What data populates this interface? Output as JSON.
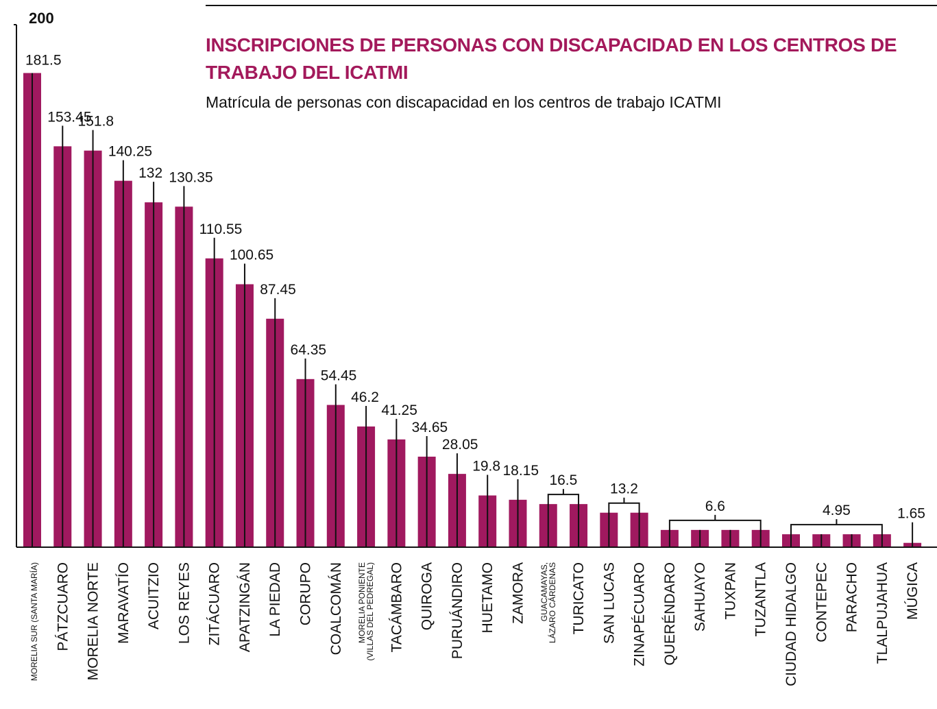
{
  "chart_data": {
    "type": "bar",
    "title": "INSCRIPCIONES DE PERSONAS CON DISCAPACIDAD EN LOS CENTROS DE TRABAJO DEL ICATMI",
    "subtitle": "Matrícula de personas con discapacidad en los centros de trabajo ICATMI",
    "categories": [
      "MORELIA SUR (SANTA MARÍA)",
      "PÁTZCUARO",
      "MORELIA NORTE",
      "MARAVATÍO",
      "ACUITZIO",
      "LOS REYES",
      "ZITÁCUARO",
      "APATZINGÁN",
      "LA PIEDAD",
      "CORUPO",
      "COALCOMÁN",
      "MORELIA PONIENTE\n(VILLAS DEL PEDREGAL)",
      "TACÁMBARO",
      "QUIROGA",
      "PURUÁNDIRO",
      "HUETAMO",
      "ZAMORA",
      "GUACAMAYAS,\nLÁZARO CÁRDENAS",
      "TURICATO",
      "SAN LUCAS",
      "ZINAPÉCUARO",
      "QUERÉNDARO",
      "SAHUAYO",
      "TUXPAN",
      "TUZANTLA",
      "CIUDAD HIDALGO",
      "CONTEPEC",
      "PARACHO",
      "TLALPUJAHUA",
      "MÚGICA"
    ],
    "values": [
      181.5,
      153.45,
      151.8,
      140.25,
      132,
      130.35,
      110.55,
      100.65,
      87.45,
      64.35,
      54.45,
      46.2,
      41.25,
      34.65,
      28.05,
      19.8,
      18.15,
      16.5,
      16.5,
      13.2,
      13.2,
      6.6,
      6.6,
      6.6,
      6.6,
      4.95,
      4.95,
      4.95,
      4.95,
      1.65
    ],
    "color": "#a0195f",
    "ylim": [
      0,
      200
    ],
    "yticks": [
      200
    ],
    "grid": false
  }
}
